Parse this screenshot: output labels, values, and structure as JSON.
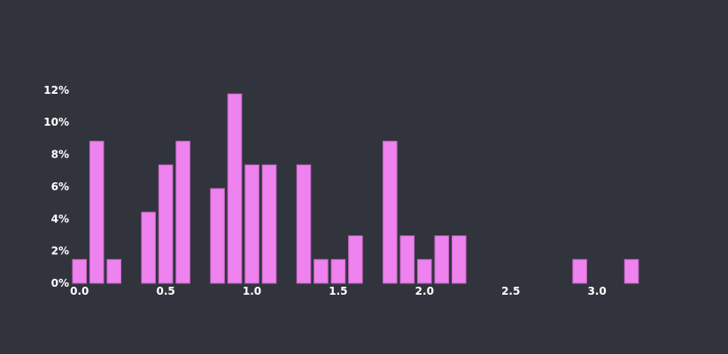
{
  "chart_data": {
    "type": "bar",
    "title": "",
    "xlabel": "",
    "ylabel": "",
    "bin_width": 0.1,
    "x": [
      0.0,
      0.1,
      0.2,
      0.4,
      0.5,
      0.6,
      0.8,
      0.9,
      1.0,
      1.1,
      1.3,
      1.4,
      1.5,
      1.6,
      1.8,
      1.9,
      2.0,
      2.1,
      2.2,
      2.9,
      3.2
    ],
    "values": [
      1.47,
      8.82,
      1.47,
      4.41,
      7.35,
      8.82,
      5.88,
      11.76,
      7.35,
      7.35,
      7.35,
      1.47,
      1.47,
      2.94,
      8.82,
      2.94,
      1.47,
      2.94,
      2.94,
      1.47,
      1.47
    ],
    "xlim": [
      -0.05,
      3.4
    ],
    "ylim": [
      0,
      12.1
    ],
    "x_ticks": [
      "0.0",
      "0.5",
      "1.0",
      "1.5",
      "2.0",
      "2.5",
      "3.0"
    ],
    "y_ticks": [
      "0%",
      "2%",
      "4%",
      "6%",
      "8%",
      "10%",
      "12%"
    ],
    "colors": {
      "background": "#31343c",
      "bar_fill": "#ee82ee",
      "bar_stroke": "#c768c7"
    },
    "grid": false
  }
}
